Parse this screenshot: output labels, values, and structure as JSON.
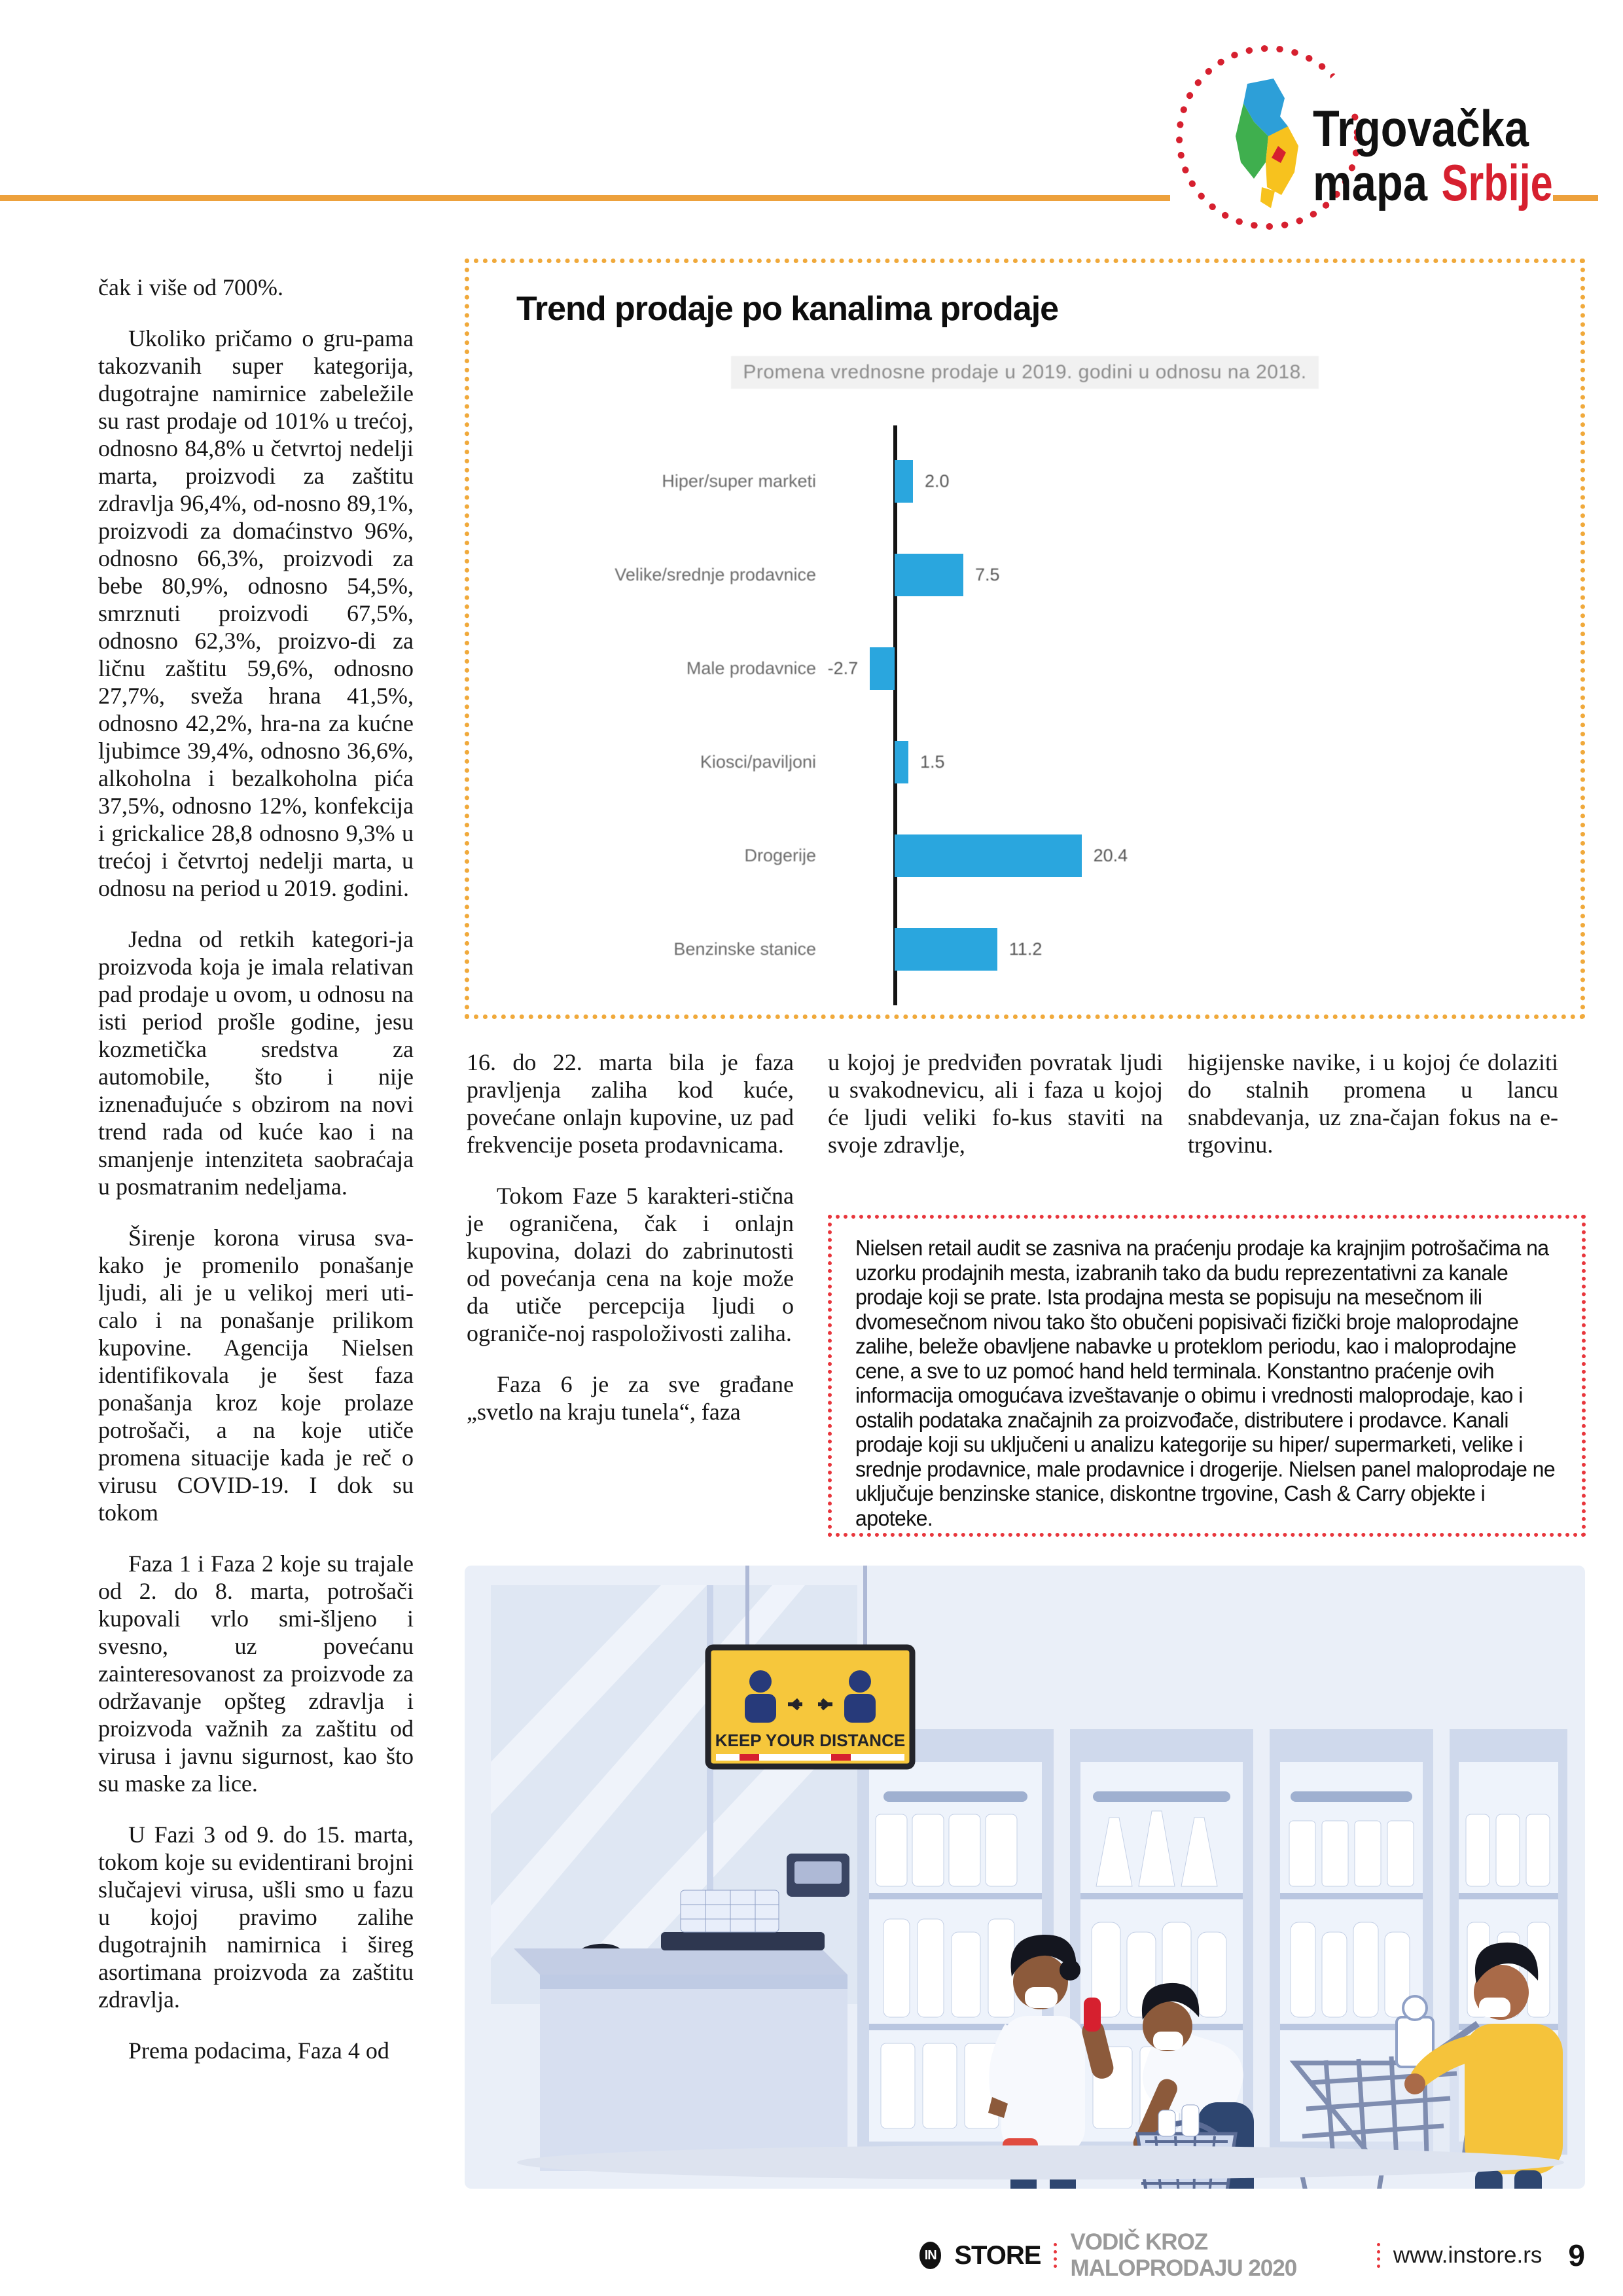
{
  "logo": {
    "title_line1": "Trgovačka",
    "title_line2": "mapa",
    "title_line2_accent": "Srbije"
  },
  "left_column": {
    "paragraphs": [
      "čak i više od 700%.",
      "Ukoliko pričamo o gru-pama takozvanih super kategorija, dugotrajne namirnice zabeležile su rast prodaje od 101% u trećoj, odnosno 84,8% u četvrtoj nedelji marta, proizvodi za zaštitu zdravlja 96,4%, od-nosno 89,1%, proizvodi za domaćinstvo 96%, odnosno 66,3%, proizvodi za bebe 80,9%, odnosno 54,5%, smrznuti proizvodi 67,5%, odnosno 62,3%, proizvo-di za ličnu zaštitu 59,6%, odnosno 27,7%, sveža hrana 41,5%, odnosno 42,2%, hra-na za kućne ljubimce 39,4%, odnosno 36,6%, alkoholna i bezalkoholna pića 37,5%, odnosno 12%, konfekcija i grickalice 28,8 odnosno 9,3% u trećoj i četvrtoj nedelji marta, u odnosu na period u 2019. godini.",
      "Jedna od retkih kategori-ja proizvoda koja je imala relativan pad prodaje u ovom, u odnosu na isti period prošle godine, jesu kozmetička sredstva za automobile, što i nije iznenađujuće s obzirom na novi trend rada od kuće kao i na smanjenje intenziteta saobraćaja u posmatranim nedeljama.",
      "Širenje korona virusa sva-kako je promenilo ponašanje ljudi, ali je u velikoj meri uti-calo i na ponašanje prilikom kupovine. Agencija Nielsen identifikovala je šest faza ponašanja kroz koje prolaze potrošači, a na koje utiče promena situacije kada je reč o virusu COVID-19. I dok su tokom",
      "Faza 1 i Faza 2 koje su trajale od 2. do 8. marta, potrošači kupovali vrlo smi-šljeno i svesno, uz povećanu zainteresovanost za proizvode za održavanje opšteg zdravlja i proizvoda važnih za zaštitu od virusa i javnu sigurnost, kao što su maske za lice.",
      "U Fazi 3 od 9. do 15. marta, tokom koje su evidentirani brojni slučajevi virusa, ušli smo u fazu u kojoj pravimo zalihe dugotrajnih namirnica i šireg asortimana proizvoda za zaštitu zdravlja.",
      "Prema podacima, Faza 4 od"
    ]
  },
  "chart_box": {
    "title": "Trend prodaje po kanalima prodaje",
    "subtitle": "Promena vrednosne prodaje u 2019. godini u odnosu na 2018."
  },
  "chart_data": {
    "type": "bar",
    "orientation": "horizontal",
    "title": "Trend prodaje po kanalima prodaje",
    "subtitle": "Promena vrednosne prodaje u 2019. godini u odnosu na 2018.",
    "categories": [
      "Hiper/super marketi",
      "Velike/srednje prodavnice",
      "Male prodavnice",
      "Kiosci/paviljoni",
      "Drogerije",
      "Benzinske stanice"
    ],
    "values": [
      2.0,
      7.5,
      -2.7,
      1.5,
      20.4,
      11.2
    ],
    "values_display": [
      "2.0",
      "7.5",
      "-2.7",
      "1.5",
      "20.4",
      "11.2"
    ],
    "xlabel": "",
    "ylabel": "",
    "xlim": [
      -5,
      25
    ],
    "grid": false,
    "legend": false,
    "bar_color": "#2aa6de"
  },
  "continuation_columns": {
    "col2_paragraphs": [
      "16. do 22. marta bila je faza pravljenja zaliha kod kuće, povećane onlajn kupovine, uz pad frekvencije poseta prodavnicama.",
      "Tokom Faze 5 karakteri-stična je ograničena, čak i onlajn kupovina, dolazi do zabrinutosti od povećanja cena na koje može da utiče percepcija ljudi o ograniče-noj raspoloživosti zaliha.",
      "Faza 6 je za sve građane „svetlo na kraju tunela“, faza"
    ],
    "col3_paragraphs": [
      "u kojoj je predviđen povratak ljudi u svakodnevicu, ali i faza u kojoj će ljudi veliki fo-kus staviti na svoje zdravlje,"
    ],
    "col4_paragraphs": [
      "higijenske navike, i u kojoj će dolaziti do stalnih promena u lancu snabdevanja, uz zna-čajan fokus na e-trgovinu."
    ]
  },
  "nielsen_box": {
    "text": "Nielsen retail audit se zasniva na praćenju prodaje ka krajnjim potrošačima na uzorku prodajnih mesta, izabranih tako da budu reprezentativni za kanale prodaje koji se prate. Ista prodajna mesta se popisuju na mesečnom ili dvomesečnom nivou tako što obučeni popisivači fizički broje maloprodajne zalihe, beleže obavljene nabavke u proteklom periodu, kao i maloprodajne cene, a sve to uz pomoć hand held terminala. Konstantno praćenje ovih informacija omogućava izveštavanje o obimu i vrednosti maloprodaje, kao i ostalih podataka značajnih za proizvođače, distributere i prodavce. Kanali prodaje koji su uključeni u analizu kategorije su hiper/ supermarketi, velike i srednje prodavnice, male prodavnice i drogerije. Nielsen panel maloprodaje ne uključuje benzinske stanice, diskontne trgovine, Cash & Carry objekte i apoteke."
  },
  "illustration": {
    "sign_text": "KEEP YOUR DISTANCE"
  },
  "footer": {
    "brand_circle": "IN",
    "brand": "STORE",
    "guide_label": "VODIČ KROZ MALOPRODAJU 2020",
    "website": "www.instore.rs",
    "page_number": "9"
  },
  "colors": {
    "accent_orange": "#eda13c",
    "chart_border_orange": "#f0a93b",
    "bar_blue": "#2aa6de",
    "accent_red": "#e8363c",
    "footer_gray": "#9a9a9a"
  }
}
